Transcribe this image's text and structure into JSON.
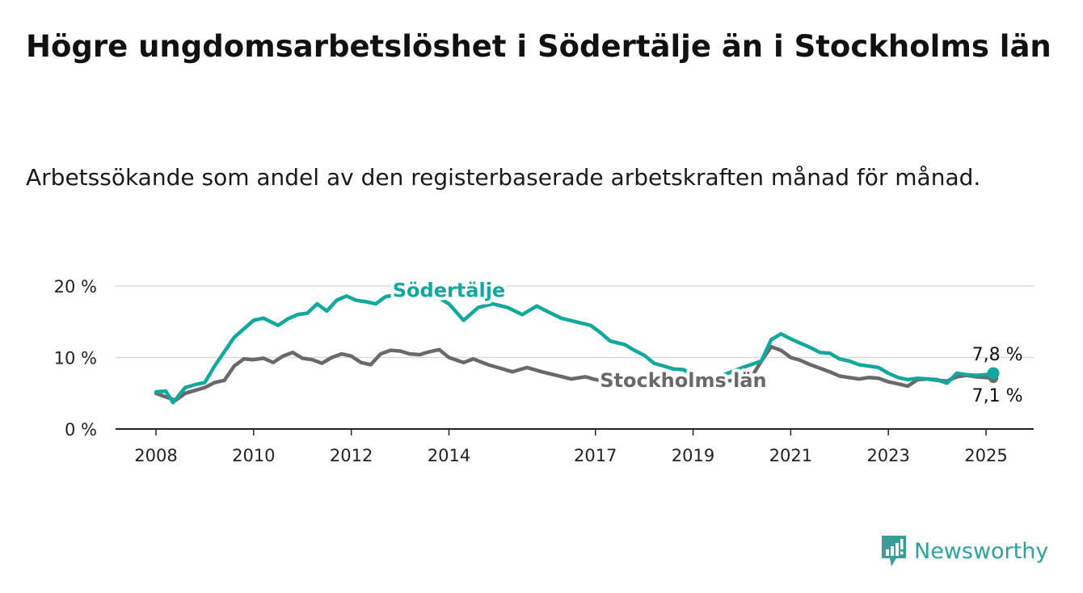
{
  "title": "Högre ungdomsarbetslöshet i Södertälje än i Stockholms län",
  "subtitle": "Arbetssökande som andel av den registerbaserade arbetskraften månad för månad.",
  "brand": {
    "name": "Newsworthy",
    "icon": "newsworthy-chart-bubble-icon",
    "color": "#3a9e96"
  },
  "colors": {
    "sodertalje": "#13a89e",
    "stockholm": "#6a686d",
    "grid": "#d9d9d9",
    "axis": "#222222"
  },
  "chart_data": {
    "type": "line",
    "title": "Högre ungdomsarbetslöshet i Södertälje än i Stockholms län",
    "xlabel": "",
    "ylabel": "",
    "xlim": [
      2007.9,
      2026.0
    ],
    "ylim": [
      0,
      20
    ],
    "x_ticks": [
      2008,
      2010,
      2012,
      2014,
      2017,
      2019,
      2021,
      2023,
      2025
    ],
    "y_ticks": [
      {
        "value": 0,
        "label": "0 %"
      },
      {
        "value": 10,
        "label": "10 %"
      },
      {
        "value": 20,
        "label": "20 %"
      }
    ],
    "grid": "horizontal",
    "series": [
      {
        "name": "Södertälje",
        "color": "#13a89e",
        "end_label": "7,8 %",
        "points": [
          [
            2008.0,
            5.2
          ],
          [
            2008.2,
            5.3
          ],
          [
            2008.35,
            3.7
          ],
          [
            2008.6,
            5.8
          ],
          [
            2008.8,
            6.2
          ],
          [
            2009.0,
            6.5
          ],
          [
            2009.2,
            8.8
          ],
          [
            2009.4,
            10.8
          ],
          [
            2009.6,
            12.8
          ],
          [
            2009.8,
            14.0
          ],
          [
            2010.0,
            15.2
          ],
          [
            2010.2,
            15.5
          ],
          [
            2010.35,
            15.0
          ],
          [
            2010.5,
            14.5
          ],
          [
            2010.7,
            15.4
          ],
          [
            2010.9,
            16.0
          ],
          [
            2011.1,
            16.2
          ],
          [
            2011.3,
            17.5
          ],
          [
            2011.5,
            16.5
          ],
          [
            2011.7,
            18.0
          ],
          [
            2011.9,
            18.6
          ],
          [
            2012.1,
            18.0
          ],
          [
            2012.3,
            17.8
          ],
          [
            2012.5,
            17.5
          ],
          [
            2012.7,
            18.5
          ],
          [
            2013.0,
            18.9
          ],
          [
            2013.3,
            19.1
          ],
          [
            2013.5,
            18.6
          ],
          [
            2013.8,
            18.3
          ],
          [
            2014.0,
            17.5
          ],
          [
            2014.3,
            15.2
          ],
          [
            2014.6,
            17.0
          ],
          [
            2014.9,
            17.5
          ],
          [
            2015.2,
            17.0
          ],
          [
            2015.5,
            16.0
          ],
          [
            2015.8,
            17.2
          ],
          [
            2016.0,
            16.5
          ],
          [
            2016.3,
            15.5
          ],
          [
            2016.6,
            15.0
          ],
          [
            2016.9,
            14.5
          ],
          [
            2017.1,
            13.5
          ],
          [
            2017.3,
            12.3
          ],
          [
            2017.6,
            11.8
          ],
          [
            2017.8,
            11.0
          ],
          [
            2018.0,
            10.3
          ],
          [
            2018.2,
            9.2
          ],
          [
            2018.4,
            8.8
          ],
          [
            2018.6,
            8.4
          ],
          [
            2018.8,
            8.3
          ],
          [
            2019.0,
            7.5
          ],
          [
            2019.3,
            6.8
          ],
          [
            2019.6,
            7.5
          ],
          [
            2019.9,
            8.3
          ],
          [
            2020.1,
            8.8
          ],
          [
            2020.4,
            9.5
          ],
          [
            2020.6,
            12.5
          ],
          [
            2020.8,
            13.3
          ],
          [
            2021.0,
            12.6
          ],
          [
            2021.2,
            12.0
          ],
          [
            2021.4,
            11.4
          ],
          [
            2021.6,
            10.7
          ],
          [
            2021.8,
            10.6
          ],
          [
            2022.0,
            9.8
          ],
          [
            2022.2,
            9.5
          ],
          [
            2022.4,
            9.0
          ],
          [
            2022.6,
            8.8
          ],
          [
            2022.8,
            8.6
          ],
          [
            2023.0,
            7.8
          ],
          [
            2023.2,
            7.2
          ],
          [
            2023.4,
            6.9
          ],
          [
            2023.6,
            7.1
          ],
          [
            2023.8,
            7.0
          ],
          [
            2024.0,
            6.9
          ],
          [
            2024.2,
            6.4
          ],
          [
            2024.4,
            7.8
          ],
          [
            2024.6,
            7.6
          ],
          [
            2024.8,
            7.5
          ],
          [
            2025.0,
            7.6
          ],
          [
            2025.15,
            7.8
          ]
        ]
      },
      {
        "name": "Stockholms län",
        "color": "#6a686d",
        "end_label": "7,1 %",
        "points": [
          [
            2008.0,
            5.0
          ],
          [
            2008.2,
            4.5
          ],
          [
            2008.4,
            4.0
          ],
          [
            2008.6,
            5.0
          ],
          [
            2008.8,
            5.4
          ],
          [
            2009.0,
            5.8
          ],
          [
            2009.2,
            6.5
          ],
          [
            2009.4,
            6.8
          ],
          [
            2009.6,
            8.8
          ],
          [
            2009.8,
            9.8
          ],
          [
            2010.0,
            9.7
          ],
          [
            2010.2,
            9.9
          ],
          [
            2010.4,
            9.3
          ],
          [
            2010.6,
            10.2
          ],
          [
            2010.8,
            10.7
          ],
          [
            2011.0,
            9.9
          ],
          [
            2011.2,
            9.7
          ],
          [
            2011.4,
            9.2
          ],
          [
            2011.6,
            10.0
          ],
          [
            2011.8,
            10.5
          ],
          [
            2012.0,
            10.2
          ],
          [
            2012.2,
            9.3
          ],
          [
            2012.4,
            9.0
          ],
          [
            2012.6,
            10.5
          ],
          [
            2012.8,
            11.0
          ],
          [
            2013.0,
            10.9
          ],
          [
            2013.2,
            10.5
          ],
          [
            2013.4,
            10.4
          ],
          [
            2013.6,
            10.8
          ],
          [
            2013.8,
            11.1
          ],
          [
            2014.0,
            10.0
          ],
          [
            2014.3,
            9.3
          ],
          [
            2014.5,
            9.8
          ],
          [
            2014.8,
            9.0
          ],
          [
            2015.0,
            8.6
          ],
          [
            2015.3,
            8.0
          ],
          [
            2015.6,
            8.6
          ],
          [
            2015.9,
            8.0
          ],
          [
            2016.2,
            7.5
          ],
          [
            2016.5,
            7.0
          ],
          [
            2016.8,
            7.3
          ],
          [
            2017.0,
            6.9
          ],
          [
            2017.3,
            6.7
          ],
          [
            2017.6,
            7.0
          ],
          [
            2017.9,
            7.0
          ],
          [
            2018.2,
            6.8
          ],
          [
            2018.5,
            6.5
          ],
          [
            2018.8,
            6.6
          ],
          [
            2019.1,
            6.3
          ],
          [
            2019.4,
            6.6
          ],
          [
            2019.7,
            6.7
          ],
          [
            2020.0,
            7.0
          ],
          [
            2020.2,
            7.3
          ],
          [
            2020.4,
            9.5
          ],
          [
            2020.6,
            11.5
          ],
          [
            2020.8,
            11.0
          ],
          [
            2021.0,
            10.0
          ],
          [
            2021.2,
            9.6
          ],
          [
            2021.4,
            9.0
          ],
          [
            2021.6,
            8.5
          ],
          [
            2021.8,
            8.0
          ],
          [
            2022.0,
            7.4
          ],
          [
            2022.2,
            7.2
          ],
          [
            2022.4,
            7.0
          ],
          [
            2022.6,
            7.2
          ],
          [
            2022.8,
            7.1
          ],
          [
            2023.0,
            6.6
          ],
          [
            2023.2,
            6.3
          ],
          [
            2023.4,
            6.0
          ],
          [
            2023.6,
            6.9
          ],
          [
            2023.8,
            7.0
          ],
          [
            2024.0,
            6.8
          ],
          [
            2024.2,
            6.7
          ],
          [
            2024.4,
            7.3
          ],
          [
            2024.6,
            7.5
          ],
          [
            2024.8,
            7.3
          ],
          [
            2025.0,
            7.2
          ],
          [
            2025.15,
            7.1
          ]
        ]
      }
    ],
    "annotations": [
      {
        "series": "Södertälje",
        "text": "Södertälje",
        "x": 2014.0,
        "y": 18.5
      },
      {
        "series": "Stockholms län",
        "text": "Stockholms län",
        "x": 2018.8,
        "y": 5.9
      }
    ]
  }
}
